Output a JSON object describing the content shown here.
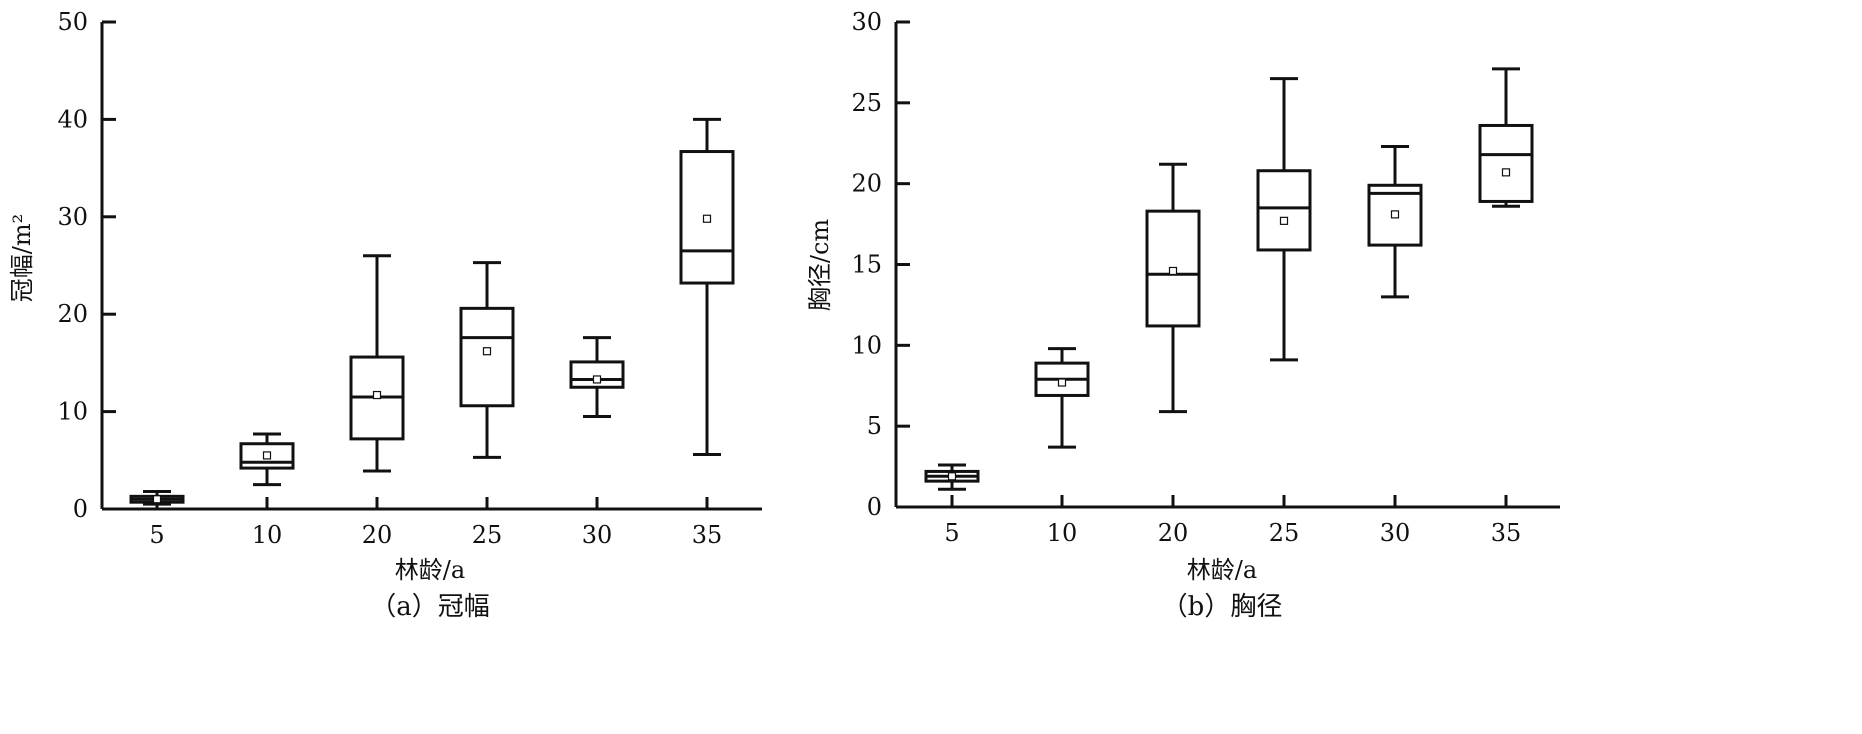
{
  "chart_data": [
    {
      "type": "box",
      "title": "",
      "caption": "（a）冠幅",
      "xlabel": "林龄/a",
      "ylabel": "冠幅/m²",
      "ylim": [
        0,
        50
      ],
      "yticks": [
        0,
        10,
        20,
        30,
        40,
        50
      ],
      "categories": [
        "5",
        "10",
        "20",
        "25",
        "30",
        "35"
      ],
      "boxes": [
        {
          "category": "5",
          "whisker_low": 0.5,
          "q1": 0.7,
          "median": 1.0,
          "q3": 1.3,
          "whisker_high": 1.8,
          "mean": 1.0
        },
        {
          "category": "10",
          "whisker_low": 2.5,
          "q1": 4.2,
          "median": 4.8,
          "q3": 6.7,
          "whisker_high": 7.7,
          "mean": 5.5
        },
        {
          "category": "20",
          "whisker_low": 3.9,
          "q1": 7.2,
          "median": 11.5,
          "q3": 15.6,
          "whisker_high": 26.0,
          "mean": 11.7
        },
        {
          "category": "25",
          "whisker_low": 5.3,
          "q1": 10.6,
          "median": 17.6,
          "q3": 20.6,
          "whisker_high": 25.3,
          "mean": 16.2
        },
        {
          "category": "30",
          "whisker_low": 9.5,
          "q1": 12.5,
          "median": 13.3,
          "q3": 15.1,
          "whisker_high": 17.6,
          "mean": 13.3
        },
        {
          "category": "35",
          "whisker_low": 5.6,
          "q1": 23.2,
          "median": 26.5,
          "q3": 36.7,
          "whisker_high": 40.0,
          "mean": 29.8
        }
      ],
      "grid": false,
      "legend": "none"
    },
    {
      "type": "box",
      "title": "",
      "caption": "（b）胸径",
      "xlabel": "林龄/a",
      "ylabel": "胸径/cm",
      "ylim": [
        0,
        30
      ],
      "yticks": [
        0,
        5,
        10,
        15,
        20,
        25,
        30
      ],
      "categories": [
        "5",
        "10",
        "20",
        "25",
        "30",
        "35"
      ],
      "boxes": [
        {
          "category": "5",
          "whisker_low": 1.1,
          "q1": 1.6,
          "median": 1.9,
          "q3": 2.2,
          "whisker_high": 2.6,
          "mean": 1.9
        },
        {
          "category": "10",
          "whisker_low": 3.7,
          "q1": 6.9,
          "median": 7.9,
          "q3": 8.9,
          "whisker_high": 9.8,
          "mean": 7.7
        },
        {
          "category": "20",
          "whisker_low": 5.9,
          "q1": 11.2,
          "median": 14.4,
          "q3": 18.3,
          "whisker_high": 21.2,
          "mean": 14.6
        },
        {
          "category": "25",
          "whisker_low": 9.1,
          "q1": 15.9,
          "median": 18.5,
          "q3": 20.8,
          "whisker_high": 26.5,
          "mean": 17.7
        },
        {
          "category": "30",
          "whisker_low": 13.0,
          "q1": 16.2,
          "median": 19.4,
          "q3": 19.9,
          "whisker_high": 22.3,
          "mean": 18.1
        },
        {
          "category": "35",
          "whisker_low": 18.6,
          "q1": 18.9,
          "median": 21.8,
          "q3": 23.6,
          "whisker_high": 27.1,
          "mean": 20.7
        }
      ],
      "grid": false,
      "legend": "none"
    }
  ]
}
